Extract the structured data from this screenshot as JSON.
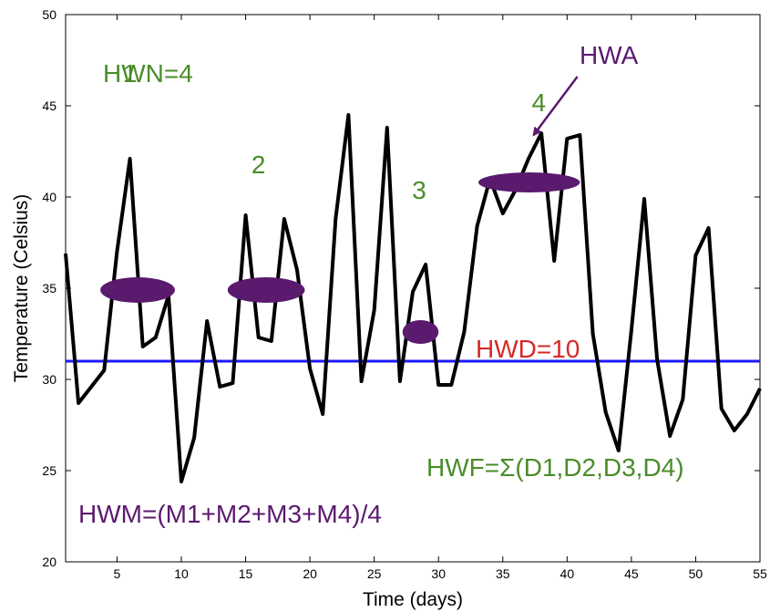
{
  "colors": {
    "series": "#000000",
    "threshold": "#1a1aff",
    "green_text": "#4a8c2a",
    "purple": "#5a1a6e",
    "red_text": "#d62828"
  },
  "chart_data": {
    "type": "line",
    "xlabel": "Time (days)",
    "ylabel": "Temperature (Celsius)",
    "xlim": [
      1,
      55
    ],
    "ylim": [
      20,
      50
    ],
    "xticks": [
      5,
      10,
      15,
      20,
      25,
      30,
      35,
      40,
      45,
      50,
      55
    ],
    "yticks": [
      20,
      25,
      30,
      35,
      40,
      45,
      50
    ],
    "grid": false,
    "x": [
      1,
      2,
      3,
      4,
      5,
      6,
      7,
      8,
      9,
      10,
      11,
      12,
      13,
      14,
      15,
      16,
      17,
      18,
      19,
      20,
      21,
      22,
      23,
      24,
      25,
      26,
      27,
      28,
      29,
      30,
      31,
      32,
      33,
      34,
      35,
      36,
      37,
      38,
      39,
      40,
      41,
      42,
      43,
      44,
      45,
      46,
      47,
      48,
      49,
      50,
      51,
      52,
      53,
      54,
      55
    ],
    "values": [
      36.9,
      28.7,
      29.6,
      30.5,
      37.0,
      42.1,
      31.8,
      32.3,
      34.6,
      24.4,
      26.8,
      33.2,
      29.6,
      29.8,
      39.0,
      32.3,
      32.1,
      38.8,
      36.0,
      30.6,
      28.1,
      38.8,
      44.5,
      29.9,
      33.8,
      43.8,
      29.9,
      34.8,
      36.3,
      29.7,
      29.7,
      32.6,
      38.4,
      41.0,
      39.1,
      40.4,
      42.1,
      43.5,
      36.5,
      43.2,
      43.4,
      32.5,
      28.2,
      26.1,
      32.7,
      39.9,
      31.1,
      26.9,
      28.9,
      36.8,
      38.3,
      28.4,
      27.2,
      28.1,
      29.5
    ],
    "threshold": 31.0,
    "heatwave_ellipses": [
      {
        "x_start": 3.7,
        "x_end": 9.5,
        "y": 34.9,
        "y_half_height": 0.7
      },
      {
        "x_start": 13.6,
        "x_end": 19.6,
        "y": 34.9,
        "y_half_height": 0.7
      },
      {
        "x_start": 27.2,
        "x_end": 30.0,
        "y": 32.6,
        "y_half_height": 0.65
      },
      {
        "x_start": 33.1,
        "x_end": 41.0,
        "y": 40.8,
        "y_half_height": 0.55
      }
    ],
    "annotations": {
      "hwn": "HWN=4",
      "hwd": "HWD=10",
      "hwa": "HWA",
      "hwf": "HWF=Σ(D1,D2,D3,D4)",
      "hwm": "HWM=(M1+M2+M3+M4)/4",
      "event_labels": [
        {
          "text": "1",
          "x": 6.0,
          "y": 46.3
        },
        {
          "text": "2",
          "x": 16.0,
          "y": 41.3
        },
        {
          "text": "3",
          "x": 28.5,
          "y": 39.9
        },
        {
          "text": "4",
          "x": 37.8,
          "y": 44.7
        }
      ],
      "hwa_arrow": {
        "from": [
          40.8,
          46.6
        ],
        "to": [
          37.4,
          43.4
        ]
      }
    }
  }
}
